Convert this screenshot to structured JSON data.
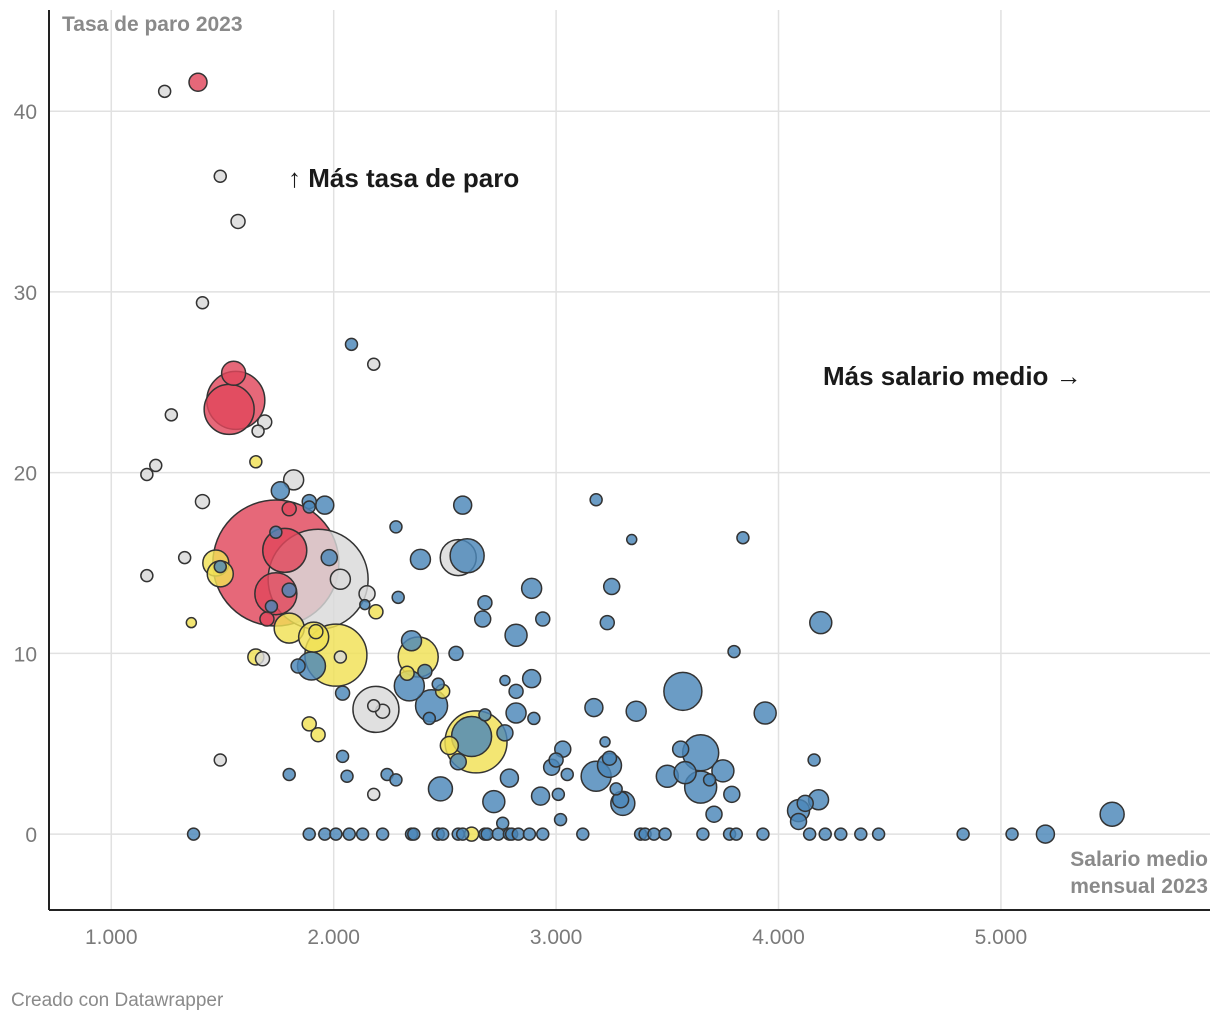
{
  "chart_data": {
    "type": "scatter",
    "title": "",
    "ylabel": "Tasa de paro 2023",
    "xlabel_lines": [
      "Salario medio",
      "mensual 2023"
    ],
    "xlim": [
      720,
      5940
    ],
    "ylim": [
      -4.2,
      45.6
    ],
    "x_ticks": [
      1000,
      2000,
      3000,
      4000,
      5000
    ],
    "x_tick_labels": [
      "1.000",
      "2.000",
      "3.000",
      "4.000",
      "5.000"
    ],
    "y_ticks": [
      0,
      10,
      20,
      30,
      40
    ],
    "y_tick_labels": [
      "0",
      "10",
      "20",
      "30",
      "40"
    ],
    "annotations": {
      "up": "↑ Más tasa de paro",
      "right": "Más salario medio →"
    },
    "colors": {
      "red": "#e0475b",
      "grey": "#d9d9d9",
      "yellow": "#f0e054",
      "blue": "#4a86b8",
      "stroke": "#333333",
      "grid": "#e1e1e1",
      "axis": "#222222"
    },
    "series": [
      {
        "name": "red",
        "points": [
          [
            1390,
            41.6,
            9
          ],
          [
            1550,
            25.5,
            12
          ],
          [
            1560,
            24.0,
            29
          ],
          [
            1530,
            23.5,
            25
          ],
          [
            1740,
            15.0,
            63
          ],
          [
            1780,
            15.7,
            22
          ],
          [
            1740,
            13.3,
            21
          ],
          [
            1700,
            11.9,
            7
          ],
          [
            1800,
            18.0,
            7
          ]
        ]
      },
      {
        "name": "grey",
        "points": [
          [
            1240,
            41.1,
            6
          ],
          [
            1490,
            36.4,
            6
          ],
          [
            1570,
            33.9,
            7
          ],
          [
            1410,
            29.4,
            6
          ],
          [
            1270,
            23.2,
            6
          ],
          [
            1660,
            22.3,
            6
          ],
          [
            1690,
            22.8,
            7
          ],
          [
            1200,
            20.4,
            6
          ],
          [
            1160,
            19.9,
            6
          ],
          [
            1410,
            18.4,
            7
          ],
          [
            1820,
            19.6,
            10
          ],
          [
            1930,
            14.1,
            50
          ],
          [
            1330,
            15.3,
            6
          ],
          [
            1160,
            14.3,
            6
          ],
          [
            2030,
            14.1,
            10
          ],
          [
            2150,
            13.3,
            8
          ],
          [
            1680,
            9.7,
            7
          ],
          [
            2560,
            15.3,
            18
          ],
          [
            2190,
            6.9,
            23
          ],
          [
            2220,
            6.8,
            7
          ],
          [
            2180,
            7.1,
            6
          ],
          [
            2030,
            9.8,
            6
          ],
          [
            1490,
            4.1,
            6
          ],
          [
            2180,
            2.2,
            6
          ],
          [
            2180,
            26.0,
            6
          ]
        ]
      },
      {
        "name": "yellow",
        "points": [
          [
            1650,
            20.6,
            6
          ],
          [
            1470,
            15.0,
            13
          ],
          [
            1490,
            14.4,
            13
          ],
          [
            1360,
            11.7,
            5
          ],
          [
            1800,
            11.4,
            15
          ],
          [
            1650,
            9.8,
            8
          ],
          [
            1920,
            11.2,
            7
          ],
          [
            1910,
            10.9,
            15
          ],
          [
            2010,
            9.9,
            31
          ],
          [
            2380,
            9.8,
            20
          ],
          [
            2330,
            8.9,
            7
          ],
          [
            2190,
            12.3,
            7
          ],
          [
            1890,
            6.1,
            7
          ],
          [
            1930,
            5.5,
            7
          ],
          [
            2490,
            7.9,
            7
          ],
          [
            2640,
            5.1,
            31
          ],
          [
            2520,
            4.9,
            9
          ],
          [
            2620,
            0.0,
            7
          ]
        ]
      },
      {
        "name": "blue",
        "points": [
          [
            1760,
            19.0,
            9
          ],
          [
            1890,
            18.4,
            7
          ],
          [
            1890,
            18.1,
            6
          ],
          [
            1960,
            18.2,
            9
          ],
          [
            1740,
            16.7,
            6
          ],
          [
            1490,
            14.8,
            6
          ],
          [
            1800,
            13.5,
            7
          ],
          [
            1720,
            12.6,
            6
          ],
          [
            1980,
            15.3,
            8
          ],
          [
            2080,
            27.1,
            6
          ],
          [
            2140,
            12.7,
            5
          ],
          [
            2280,
            17.0,
            6
          ],
          [
            2290,
            13.1,
            6
          ],
          [
            2390,
            15.2,
            10
          ],
          [
            2580,
            18.2,
            9
          ],
          [
            2600,
            15.4,
            17
          ],
          [
            2680,
            12.8,
            7
          ],
          [
            2670,
            11.9,
            8
          ],
          [
            2890,
            13.6,
            10
          ],
          [
            2820,
            11.0,
            11
          ],
          [
            2940,
            11.9,
            7
          ],
          [
            3180,
            18.5,
            6
          ],
          [
            3340,
            16.3,
            5
          ],
          [
            3250,
            13.7,
            8
          ],
          [
            3230,
            11.7,
            7
          ],
          [
            3840,
            16.4,
            6
          ],
          [
            4190,
            11.7,
            11
          ],
          [
            3800,
            10.1,
            6
          ],
          [
            1840,
            9.3,
            7
          ],
          [
            1900,
            9.3,
            14
          ],
          [
            2350,
            10.7,
            10
          ],
          [
            2410,
            9.0,
            7
          ],
          [
            2340,
            8.2,
            15
          ],
          [
            2440,
            7.1,
            16
          ],
          [
            2470,
            8.3,
            6
          ],
          [
            2430,
            6.4,
            6
          ],
          [
            2550,
            10.0,
            7
          ],
          [
            2040,
            7.8,
            7
          ],
          [
            2770,
            8.5,
            5
          ],
          [
            2820,
            7.9,
            7
          ],
          [
            2890,
            8.6,
            9
          ],
          [
            2820,
            6.7,
            10
          ],
          [
            2900,
            6.4,
            6
          ],
          [
            2680,
            6.6,
            6
          ],
          [
            2620,
            5.4,
            20
          ],
          [
            2560,
            4.0,
            8
          ],
          [
            2770,
            5.6,
            8
          ],
          [
            3030,
            4.7,
            8
          ],
          [
            3000,
            4.1,
            7
          ],
          [
            2980,
            3.7,
            8
          ],
          [
            3240,
            4.2,
            7
          ],
          [
            3220,
            5.1,
            5
          ],
          [
            3180,
            3.2,
            15
          ],
          [
            3240,
            3.8,
            12
          ],
          [
            3270,
            2.5,
            6
          ],
          [
            3290,
            1.9,
            8
          ],
          [
            3300,
            1.7,
            12
          ],
          [
            3170,
            7.0,
            9
          ],
          [
            3360,
            6.8,
            10
          ],
          [
            3500,
            3.2,
            11
          ],
          [
            3560,
            4.7,
            8
          ],
          [
            3580,
            3.4,
            11
          ],
          [
            3570,
            7.9,
            19
          ],
          [
            3650,
            4.5,
            18
          ],
          [
            3650,
            2.6,
            16
          ],
          [
            3690,
            3.0,
            6
          ],
          [
            3710,
            1.1,
            8
          ],
          [
            3750,
            3.5,
            11
          ],
          [
            3790,
            2.2,
            8
          ],
          [
            3940,
            6.7,
            11
          ],
          [
            4090,
            1.3,
            11
          ],
          [
            4120,
            1.7,
            8
          ],
          [
            4090,
            0.7,
            8
          ],
          [
            4160,
            4.1,
            6
          ],
          [
            4180,
            1.9,
            10
          ],
          [
            2040,
            4.3,
            6
          ],
          [
            2060,
            3.2,
            6
          ],
          [
            2240,
            3.3,
            6
          ],
          [
            2280,
            3.0,
            6
          ],
          [
            2480,
            2.5,
            12
          ],
          [
            2720,
            1.8,
            11
          ],
          [
            2760,
            0.6,
            6
          ],
          [
            2790,
            3.1,
            9
          ],
          [
            2930,
            2.1,
            9
          ],
          [
            3010,
            2.2,
            6
          ],
          [
            3020,
            0.8,
            6
          ],
          [
            3050,
            3.3,
            6
          ],
          [
            1800,
            3.3,
            6
          ],
          [
            5500,
            1.1,
            12
          ],
          [
            5200,
            0.0,
            9
          ],
          [
            1370,
            0.0,
            6
          ],
          [
            1890,
            0.0,
            6
          ],
          [
            1960,
            0.0,
            6
          ],
          [
            2010,
            0.0,
            6
          ],
          [
            2070,
            0.0,
            6
          ],
          [
            2130,
            0.0,
            6
          ],
          [
            2220,
            0.0,
            6
          ],
          [
            2350,
            0.0,
            6
          ],
          [
            2360,
            0.0,
            6
          ],
          [
            2470,
            0.0,
            6
          ],
          [
            2490,
            0.0,
            6
          ],
          [
            2560,
            0.0,
            6
          ],
          [
            2580,
            0.0,
            6
          ],
          [
            2680,
            0.0,
            6
          ],
          [
            2690,
            0.0,
            6
          ],
          [
            2740,
            0.0,
            6
          ],
          [
            2790,
            0.0,
            6
          ],
          [
            2800,
            0.0,
            6
          ],
          [
            2830,
            0.0,
            6
          ],
          [
            2880,
            0.0,
            6
          ],
          [
            2940,
            0.0,
            6
          ],
          [
            3120,
            0.0,
            6
          ],
          [
            3380,
            0.0,
            6
          ],
          [
            3400,
            0.0,
            6
          ],
          [
            3440,
            0.0,
            6
          ],
          [
            3490,
            0.0,
            6
          ],
          [
            3660,
            0.0,
            6
          ],
          [
            3780,
            0.0,
            6
          ],
          [
            3810,
            0.0,
            6
          ],
          [
            3930,
            0.0,
            6
          ],
          [
            4140,
            0.0,
            6
          ],
          [
            4210,
            0.0,
            6
          ],
          [
            4280,
            0.0,
            6
          ],
          [
            4370,
            0.0,
            6
          ],
          [
            4450,
            0.0,
            6
          ],
          [
            4830,
            0.0,
            6
          ],
          [
            5050,
            0.0,
            6
          ]
        ]
      }
    ]
  },
  "credit": "Creado con Datawrapper"
}
